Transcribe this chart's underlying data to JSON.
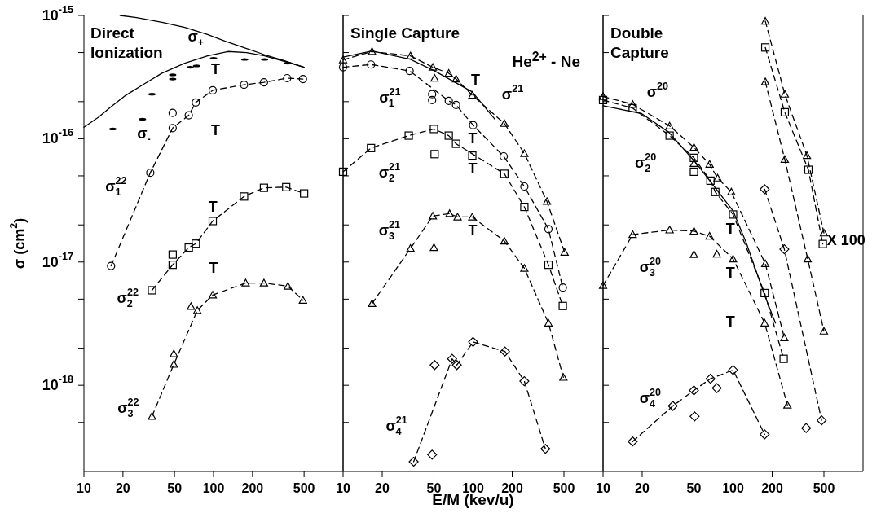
{
  "chart_data": [
    {
      "type": "line",
      "title": "Direct Ionization",
      "ylabel": "σ (cm$^{2}$)",
      "log": "xy",
      "xlim": [
        10,
        1000
      ],
      "xticks": [
        10,
        20,
        50,
        100,
        200,
        500
      ],
      "ylim": [
        2e-19,
        1e-15
      ],
      "yticks": [
        {
          "value": 1e-15,
          "label": "10$^{-15}$"
        },
        {
          "value": 5e-16,
          "label": null
        },
        {
          "value": 2e-16,
          "label": null
        },
        {
          "value": 1e-16,
          "label": "10$^{-16}$"
        },
        {
          "value": 5e-17,
          "label": null
        },
        {
          "value": 2e-17,
          "label": null
        },
        {
          "value": 1e-17,
          "label": "10$^{-17}$"
        },
        {
          "value": 5e-18,
          "label": null
        },
        {
          "value": 2e-18,
          "label": null
        },
        {
          "value": 1e-18,
          "label": "10$^{-18}$"
        },
        {
          "value": 5e-19,
          "label": null
        }
      ],
      "series": [
        {
          "color": "#000000",
          "marker": "none",
          "line_style": "solid",
          "x": [
            19,
            25.5,
            40,
            60,
            90,
            122,
            180,
            248,
            350,
            500
          ],
          "values": [
            1e-15,
            9.6e-16,
            8.8e-16,
            8e-16,
            7e-16,
            6.2e-16,
            5.4e-16,
            4.8e-16,
            4.3e-16,
            3.8e-16
          ]
        },
        {
          "color": "#000000",
          "marker": "none",
          "line_style": "solid",
          "x": [
            10,
            13,
            16,
            21,
            29.4,
            40,
            60,
            90,
            129,
            180,
            248,
            364,
            500
          ],
          "values": [
            1.24e-16,
            1.5e-16,
            1.8e-16,
            2.25e-16,
            2.8e-16,
            3.4e-16,
            4.1e-16,
            4.7e-16,
            5.1e-16,
            5e-16,
            4.7e-16,
            4.2e-16,
            3.8e-16
          ]
        },
        {
          "type": "scatter",
          "color": "#000000",
          "x": [
            16.7,
            28.3,
            33.5,
            48.4,
            48.4,
            66,
            74,
            100,
            174,
            248,
            375
          ],
          "values": [
            1.2e-16,
            1.44e-16,
            2.3e-16,
            3.3e-16,
            3.05e-16,
            3.8e-16,
            3.9e-16,
            4.5e-16,
            4.4e-16,
            4.4e-16,
            4.1e-16
          ]
        },
        {
          "color": "#000000",
          "marker": "circle",
          "line_style": "dashed",
          "x": [
            16.2,
            32.5,
            48.4,
            64.4,
            73,
            98.6,
            172,
            245,
            370,
            490
          ],
          "values": [
            9.3e-18,
            5.3e-17,
            1.22e-16,
            1.55e-16,
            1.97e-16,
            2.47e-16,
            2.74e-16,
            2.87e-16,
            3.1e-16,
            3.05e-16
          ]
        },
        {
          "type": "scatter",
          "color": "#000000",
          "marker": "circle",
          "x": [
            48.4
          ],
          "values": [
            1.62e-16
          ]
        },
        {
          "color": "#000000",
          "marker": "square",
          "line_style": "dashed",
          "x": [
            33.5,
            48.4,
            64.4,
            73,
            98.6,
            172,
            245,
            364,
            500
          ],
          "values": [
            5.9e-18,
            9.5e-18,
            1.31e-17,
            1.41e-17,
            2.15e-17,
            3.4e-17,
            4e-17,
            4.05e-17,
            3.6e-17
          ]
        },
        {
          "type": "scatter",
          "color": "#000000",
          "marker": "square",
          "x": [
            48.4
          ],
          "values": [
            1.15e-17
          ]
        },
        {
          "color": "#000000",
          "marker": "triangle",
          "line_style": "dashed",
          "x": [
            33.5,
            49.4,
            75,
            98.6,
            177,
            245,
            375,
            490
          ],
          "values": [
            5.6e-19,
            1.48e-18,
            4.05e-18,
            5.4e-18,
            6.76e-18,
            6.76e-18,
            6.37e-18,
            4.9e-18
          ]
        },
        {
          "type": "scatter",
          "color": "#000000",
          "marker": "triangle",
          "x": [
            49.4,
            67
          ],
          "values": [
            1.8e-18,
            4.36e-18
          ]
        }
      ],
      "annotations": [
        "σ$_{+}$",
        "σ$_{-}$",
        "σ$^{22}$$_{1}$",
        "σ$^{22}$$_{2}$",
        "σ$^{22}$$_{3}$",
        "T",
        "T",
        "T",
        "T"
      ]
    },
    {
      "type": "line",
      "title": "Single Capture",
      "subtitle": "He$^{2+}$ - Ne",
      "xlabel": "E/M (kev/u)",
      "log": "xy",
      "tick_labels": "x",
      "xlim": [
        10,
        1000
      ],
      "xticks": [
        10,
        20,
        50,
        100,
        200,
        500
      ],
      "ylim": [
        2e-19,
        1e-15
      ],
      "yticks": [
        {
          "value": 1e-15,
          "label": null
        },
        {
          "value": 5e-16,
          "label": null
        },
        {
          "value": 2e-16,
          "label": null
        },
        {
          "value": 1e-16,
          "label": null
        },
        {
          "value": 5e-17,
          "label": null
        },
        {
          "value": 2e-17,
          "label": null
        },
        {
          "value": 1e-17,
          "label": null
        },
        {
          "value": 5e-18,
          "label": null
        },
        {
          "value": 2e-18,
          "label": null
        },
        {
          "value": 1e-18,
          "label": null
        },
        {
          "value": 5e-19,
          "label": null
        }
      ],
      "series": [
        {
          "color": "#000000",
          "marker": "none",
          "line_style": "solid",
          "x": [
            10,
            16.7,
            33,
            50.6,
            98.6,
            147
          ],
          "values": [
            4.6e-16,
            5.15e-16,
            4.4e-16,
            3.55e-16,
            2.4e-16,
            1.44e-16
          ]
        },
        {
          "color": "#000000",
          "marker": "triangle",
          "line_style": "dashed",
          "x": [
            10,
            16.7,
            33,
            49,
            65,
            74,
            98.6,
            174,
            248,
            370,
            506
          ],
          "values": [
            4.37e-16,
            5.1e-16,
            4.7e-16,
            3.8e-16,
            3.4e-16,
            3.05e-16,
            2.25e-16,
            1.33e-16,
            7.6e-17,
            3.1e-17,
            1.2e-17
          ]
        },
        {
          "type": "scatter",
          "color": "#000000",
          "marker": "triangle",
          "x": [
            50.6
          ],
          "values": [
            3.1e-16
          ]
        },
        {
          "color": "#000000",
          "marker": "circle",
          "line_style": "dashed",
          "x": [
            10,
            16.4,
            32.5,
            65,
            74,
            100,
            172,
            248,
            380,
            490
          ],
          "values": [
            3.8e-16,
            4e-16,
            3.55e-16,
            2.03e-16,
            1.88e-16,
            1.29e-16,
            7.2e-17,
            4.1e-17,
            1.85e-17,
            6.2e-18
          ]
        },
        {
          "type": "scatter",
          "color": "#000000",
          "marker": "circle",
          "x": [
            48.4,
            48.4
          ],
          "values": [
            2.3e-16,
            2.06e-16
          ]
        },
        {
          "color": "#000000",
          "marker": "square",
          "line_style": "dashed",
          "x": [
            10,
            16.4,
            32,
            50,
            65,
            74,
            174,
            248,
            380,
            490
          ],
          "values": [
            5.4e-17,
            8.4e-17,
            1.06e-16,
            1.2e-16,
            1.06e-16,
            9.1e-17,
            5.2e-17,
            2.8e-17,
            9.5e-18,
            4.4e-18
          ]
        },
        {
          "type": "scatter",
          "color": "#000000",
          "marker": "square",
          "x": [
            50.6,
            98.6
          ],
          "values": [
            7.5e-17,
            7.3e-17
          ]
        },
        {
          "color": "#000000",
          "marker": "triangle",
          "line_style": "dashed",
          "x": [
            16.7,
            33,
            49,
            66,
            76,
            98.6,
            174,
            248,
            380,
            495
          ],
          "values": [
            4.6e-18,
            1.29e-17,
            2.36e-17,
            2.47e-17,
            2.32e-17,
            2.32e-17,
            1.48e-17,
            8.9e-18,
            3.2e-18,
            1.16e-18
          ]
        },
        {
          "type": "scatter",
          "color": "#000000",
          "marker": "triangle",
          "x": [
            50
          ],
          "values": [
            1.31e-17
          ]
        },
        {
          "color": "#000000",
          "marker": "diamond",
          "line_style": "dashed",
          "x": [
            34.9,
            69,
            75,
            100,
            176,
            248,
            360
          ],
          "values": [
            2.4e-19,
            1.64e-18,
            1.46e-18,
            2.25e-18,
            1.88e-18,
            1.08e-18,
            3.05e-19
          ]
        },
        {
          "type": "scatter",
          "color": "#000000",
          "marker": "diamond",
          "x": [
            48.4,
            50.6
          ],
          "values": [
            2.74e-19,
            1.46e-18
          ]
        }
      ],
      "annotations": [
        "σ$^{21}$$_{1}$",
        "σ$^{21}$$_{2}$",
        "σ$^{21}$$_{3}$",
        "σ$^{21}$$_{4}$",
        "σ$^{21}$",
        "T",
        "T",
        "T",
        "T"
      ]
    },
    {
      "type": "line",
      "title": "Double Capture",
      "log": "xy",
      "tick_labels": "x",
      "xlim": [
        10,
        1000
      ],
      "xticks": [
        10,
        20,
        50,
        100,
        200,
        500
      ],
      "ylim": [
        2e-19,
        1e-15
      ],
      "yticks": [
        {
          "value": 1e-15,
          "label": null
        },
        {
          "value": 5e-16,
          "label": null
        },
        {
          "value": 2e-16,
          "label": null
        },
        {
          "value": 1e-16,
          "label": null
        },
        {
          "value": 5e-17,
          "label": null
        },
        {
          "value": 2e-17,
          "label": null
        },
        {
          "value": 1e-17,
          "label": null
        },
        {
          "value": 5e-18,
          "label": null
        },
        {
          "value": 2e-18,
          "label": null
        },
        {
          "value": 1e-18,
          "label": null
        },
        {
          "value": 5e-19,
          "label": null
        }
      ],
      "series": [
        {
          "color": "#000000",
          "marker": "none",
          "line_style": "solid",
          "x": [
            10,
            12.4,
            19.8,
            32,
            51,
            100,
            126,
            177,
            212
          ],
          "values": [
            1.85e-16,
            1.77e-16,
            1.6e-16,
            1.13e-16,
            6.5e-17,
            2.6e-17,
            1.44e-17,
            5.2e-18,
            3.2e-18
          ]
        },
        {
          "color": "#000000",
          "marker": "triangle",
          "line_style": "dashed",
          "x": [
            10,
            16.9,
            32.5,
            50,
            66,
            76,
            97,
            177,
            248
          ],
          "values": [
            2.2e-16,
            1.9e-16,
            1.27e-16,
            8.5e-17,
            6.2e-17,
            4.8e-17,
            3.7e-17,
            9.7e-18,
            2.43e-18
          ]
        },
        {
          "type": "scatter",
          "color": "#000000",
          "marker": "triangle",
          "x": [
            50
          ],
          "values": [
            6.3e-17
          ]
        },
        {
          "color": "#000000",
          "marker": "square",
          "line_style": "dashed",
          "x": [
            10,
            16.9,
            32.5,
            50,
            67,
            73,
            100,
            175,
            245
          ],
          "values": [
            2.06e-16,
            1.77e-16,
            1.06e-16,
            7e-17,
            4.57e-17,
            3.7e-17,
            2.43e-17,
            5.6e-18,
            1.64e-18
          ]
        },
        {
          "type": "scatter",
          "color": "#000000",
          "marker": "square",
          "x": [
            50
          ],
          "values": [
            5.4e-17
          ]
        },
        {
          "color": "#000000",
          "marker": "triangle",
          "line_style": "dashed",
          "x": [
            10,
            16.9,
            32.5,
            50,
            66,
            100,
            175,
            262
          ],
          "values": [
            6.45e-18,
            1.67e-17,
            1.82e-17,
            1.78e-17,
            1.62e-17,
            1.06e-17,
            3.2e-18,
            6.9e-19
          ]
        },
        {
          "type": "scatter",
          "color": "#000000",
          "marker": "triangle",
          "x": [
            50,
            75
          ],
          "values": [
            1.15e-17,
            1.16e-17
          ]
        },
        {
          "color": "#000000",
          "marker": "diamond",
          "line_style": "dashed",
          "x": [
            16.9,
            34.4,
            50,
            67,
            100,
            175
          ],
          "values": [
            3.5e-19,
            6.8e-19,
            9.1e-19,
            1.13e-18,
            1.33e-18,
            4e-19
          ]
        },
        {
          "type": "scatter",
          "color": "#000000",
          "marker": "diamond",
          "x": [
            50.6,
            75
          ],
          "values": [
            5.6e-19,
            9.5e-19
          ]
        },
        {
          "color": "#000000",
          "marker": "triangle",
          "line_style": "dashed",
          "x": [
            177,
            250,
            370,
            500
          ],
          "values": [
            9e-16,
            2.3e-16,
            7.3e-17,
            1.72e-17
          ]
        },
        {
          "color": "#000000",
          "marker": "square",
          "line_style": "dashed",
          "x": [
            177,
            250,
            380,
            490
          ],
          "values": [
            5.5e-16,
            1.64e-16,
            5.6e-17,
            1.4e-17
          ]
        },
        {
          "color": "#000000",
          "marker": "triangle",
          "line_style": "dashed",
          "x": [
            177,
            250,
            375,
            500
          ],
          "values": [
            2.9e-16,
            6.8e-17,
            1.06e-17,
            2.75e-18
          ]
        },
        {
          "color": "#000000",
          "marker": "diamond",
          "line_style": "dashed",
          "x": [
            175,
            248,
            480
          ],
          "values": [
            3.9e-17,
            1.27e-17,
            5.2e-19
          ]
        },
        {
          "type": "scatter",
          "color": "#000000",
          "marker": "diamond",
          "x": [
            365
          ],
          "values": [
            4.5e-19
          ]
        }
      ],
      "annotations": [
        "σ$^{20}$",
        "σ$^{20}$$_{2}$",
        "σ$^{20}$$_{3}$",
        "σ$^{20}$$_{4}$",
        "T",
        "T",
        "T",
        "X 100"
      ]
    }
  ]
}
